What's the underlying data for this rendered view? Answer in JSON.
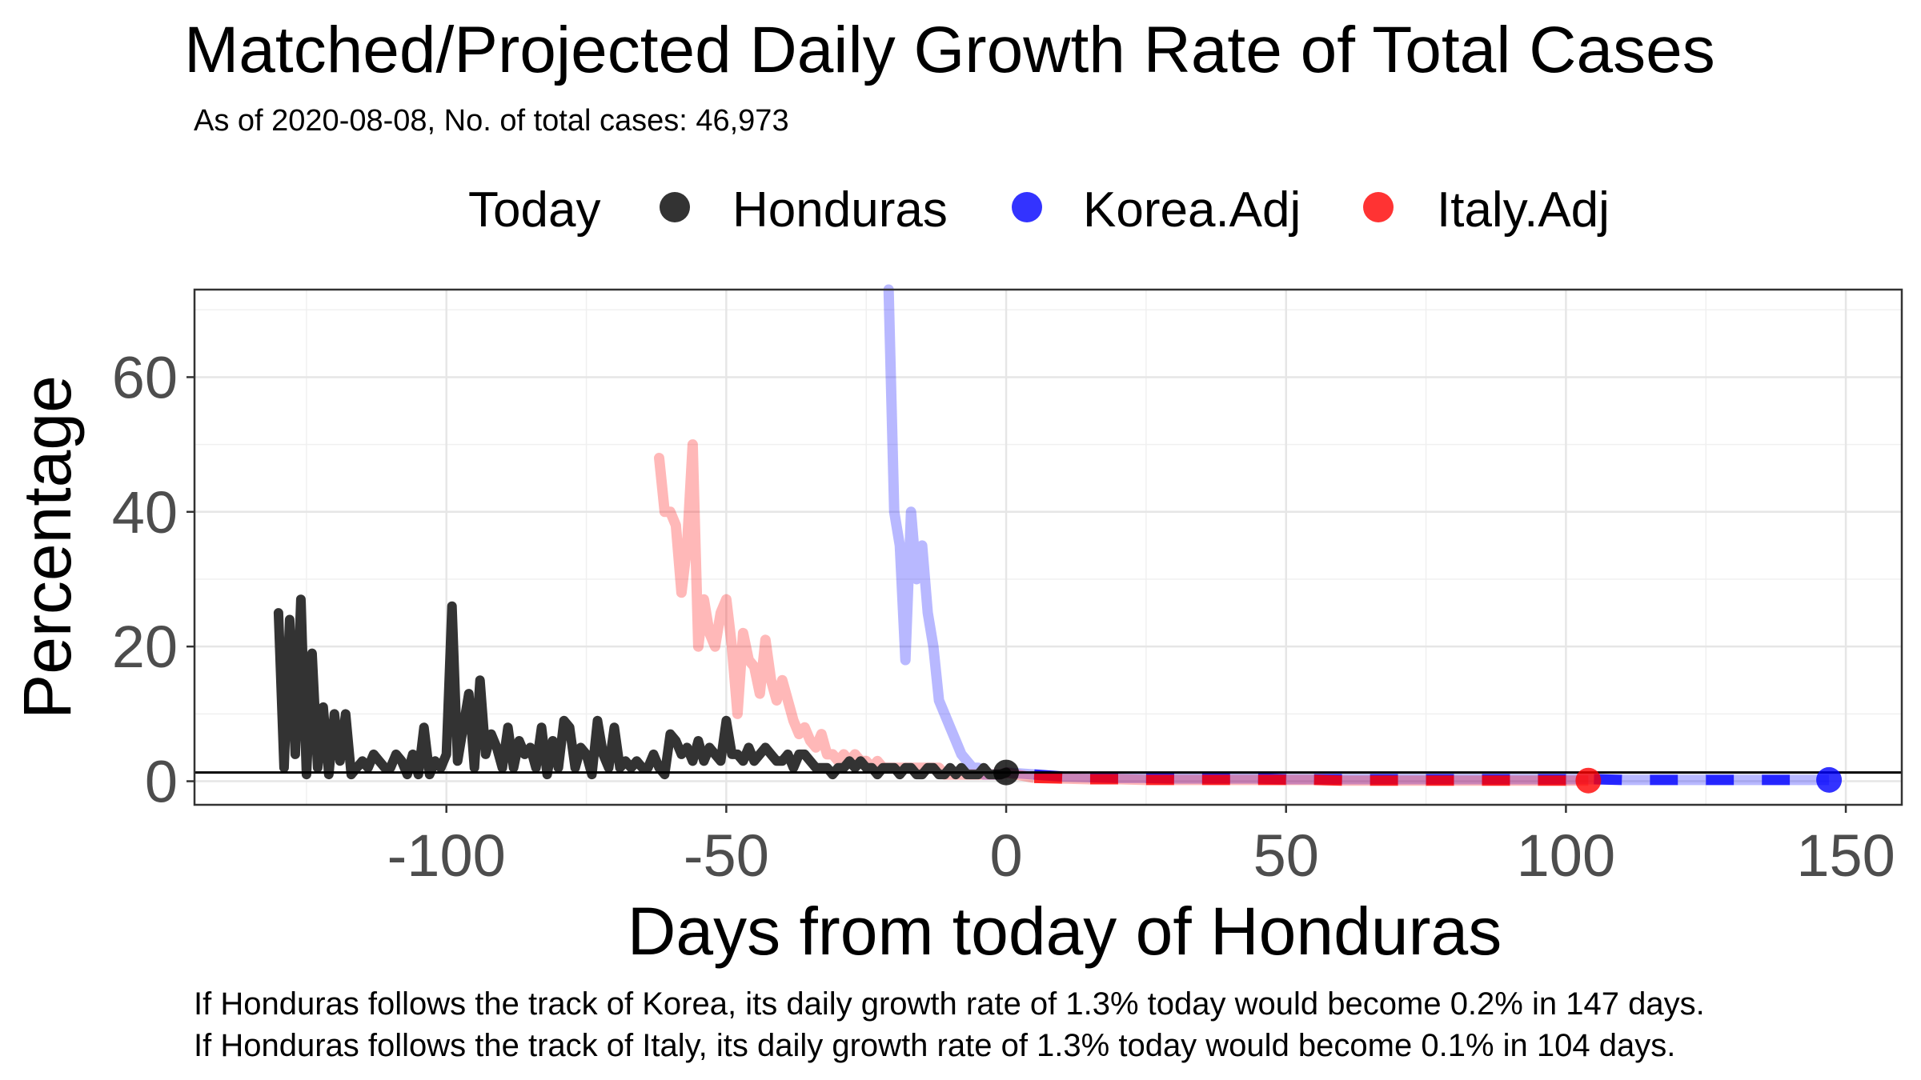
{
  "chart_data": {
    "type": "line",
    "title": "Matched/Projected Daily Growth Rate of Total Cases",
    "subtitle": "As of 2020-08-08, No. of total cases: 46,973",
    "xlabel": "Days from today of Honduras",
    "ylabel": "Percentage",
    "xlim": [
      -145,
      160
    ],
    "ylim": [
      -3.5,
      73
    ],
    "x_ticks": [
      -100,
      -50,
      0,
      50,
      100,
      150
    ],
    "x_tick_labels": [
      "-100",
      "-50",
      "0",
      "50",
      "100",
      "150"
    ],
    "y_ticks": [
      0,
      20,
      40,
      60
    ],
    "y_tick_labels": [
      "0",
      "20",
      "40",
      "60"
    ],
    "grid": true,
    "legend": {
      "position": "top",
      "title": "Today",
      "entries": [
        {
          "label": "Honduras",
          "color": "#000000"
        },
        {
          "label": "Korea.Adj",
          "color": "#0000ff"
        },
        {
          "label": "Italy.Adj",
          "color": "#ff0000"
        }
      ]
    },
    "today_line_y": 1.3,
    "series": [
      {
        "name": "Honduras",
        "color": "#333333",
        "x": [
          -130,
          -129,
          -128,
          -127,
          -126,
          -125,
          -124,
          -123,
          -122,
          -121,
          -120,
          -119,
          -118,
          -117,
          -116,
          -115,
          -114,
          -113,
          -112,
          -111,
          -110,
          -109,
          -108,
          -107,
          -106,
          -105,
          -104,
          -103,
          -102,
          -101,
          -100,
          -99,
          -98,
          -97,
          -96,
          -95,
          -94,
          -93,
          -92,
          -91,
          -90,
          -89,
          -88,
          -87,
          -86,
          -85,
          -84,
          -83,
          -82,
          -81,
          -80,
          -79,
          -78,
          -77,
          -76,
          -75,
          -74,
          -73,
          -72,
          -71,
          -70,
          -69,
          -68,
          -67,
          -66,
          -65,
          -64,
          -63,
          -62,
          -61,
          -60,
          -59,
          -58,
          -57,
          -56,
          -55,
          -54,
          -53,
          -52,
          -51,
          -50,
          -49,
          -48,
          -47,
          -46,
          -45,
          -44,
          -43,
          -42,
          -41,
          -40,
          -39,
          -38,
          -37,
          -36,
          -35,
          -34,
          -33,
          -32,
          -31,
          -30,
          -29,
          -28,
          -27,
          -26,
          -25,
          -24,
          -23,
          -22,
          -21,
          -20,
          -19,
          -18,
          -17,
          -16,
          -15,
          -14,
          -13,
          -12,
          -11,
          -10,
          -9,
          -8,
          -7,
          -6,
          -5,
          -4,
          -3,
          -2,
          -1,
          0
        ],
        "values": [
          25,
          2,
          24,
          4,
          27,
          1,
          19,
          2,
          11,
          1,
          10,
          3,
          10,
          1,
          2,
          3,
          2,
          4,
          3,
          2,
          2,
          4,
          3,
          1,
          4,
          1,
          8,
          1,
          3,
          2,
          4,
          26,
          3,
          8,
          13,
          2,
          15,
          4,
          7,
          5,
          2,
          8,
          2,
          6,
          4,
          5,
          2,
          8,
          1,
          6,
          2,
          9,
          8,
          2,
          5,
          4,
          1,
          9,
          4,
          2,
          8,
          2,
          3,
          2,
          3,
          2,
          2,
          4,
          2,
          1,
          7,
          6,
          4,
          5,
          3,
          6,
          3,
          5,
          4,
          3,
          9,
          4,
          4,
          3,
          5,
          3,
          4,
          5,
          4,
          3,
          3,
          4,
          2,
          4,
          4,
          3,
          2,
          2,
          2,
          1,
          2,
          2,
          3,
          2,
          3,
          2,
          2,
          1,
          2,
          2,
          2,
          1,
          2,
          2,
          1,
          1,
          2,
          2,
          1,
          1,
          2,
          1,
          2,
          1,
          1,
          1,
          2,
          1,
          1,
          1,
          1.3
        ]
      },
      {
        "name": "Korea.Adj",
        "color": "#0000ff",
        "x": [
          -21,
          -20,
          -19,
          -18,
          -17,
          -16,
          -15,
          -14,
          -13,
          -12,
          -11,
          -10,
          -9,
          -8,
          -7,
          -6,
          -5,
          -4,
          -3,
          -2,
          -1,
          0,
          5,
          10,
          15,
          20,
          25,
          30,
          35,
          40,
          45,
          50,
          55,
          60,
          65,
          70,
          75,
          80,
          85,
          90,
          95,
          100,
          105,
          110,
          115,
          120,
          125,
          130,
          135,
          140,
          147
        ],
        "values": [
          73,
          40,
          35,
          18,
          40,
          30,
          35,
          25,
          20,
          12,
          10,
          8,
          6,
          4,
          3,
          2,
          2,
          1,
          1,
          1,
          1,
          1.3,
          1,
          0.7,
          0.6,
          0.5,
          0.5,
          0.4,
          0.4,
          0.4,
          0.4,
          0.3,
          0.3,
          0.3,
          0.3,
          0.3,
          0.3,
          0.3,
          0.3,
          0.3,
          0.3,
          0.3,
          0.3,
          0.2,
          0.2,
          0.2,
          0.2,
          0.2,
          0.2,
          0.2,
          0.2
        ]
      },
      {
        "name": "Italy.Adj",
        "color": "#ff0000",
        "x": [
          -62,
          -61,
          -60,
          -59,
          -58,
          -57,
          -56,
          -55,
          -54,
          -53,
          -52,
          -51,
          -50,
          -49,
          -48,
          -47,
          -46,
          -45,
          -44,
          -43,
          -42,
          -41,
          -40,
          -39,
          -38,
          -37,
          -36,
          -35,
          -34,
          -33,
          -32,
          -31,
          -30,
          -29,
          -28,
          -27,
          -26,
          -25,
          -24,
          -23,
          -22,
          -21,
          -20,
          -19,
          -18,
          -17,
          -16,
          -15,
          -14,
          -13,
          -12,
          -11,
          -10,
          -9,
          -8,
          -7,
          -6,
          -5,
          -4,
          -3,
          -2,
          -1,
          0,
          5,
          10,
          15,
          20,
          25,
          30,
          35,
          40,
          45,
          50,
          55,
          60,
          65,
          70,
          75,
          80,
          85,
          90,
          95,
          100,
          104
        ],
        "values": [
          48,
          40,
          40,
          38,
          28,
          35,
          50,
          20,
          27,
          22,
          20,
          25,
          27,
          20,
          10,
          22,
          18,
          17,
          13,
          21,
          15,
          12,
          15,
          12,
          9,
          7,
          8,
          6,
          5,
          7,
          4,
          4,
          3,
          4,
          3,
          4,
          3,
          3,
          2,
          3,
          2,
          2,
          2,
          2,
          2,
          2,
          2,
          2,
          2,
          2,
          2,
          1,
          1,
          1,
          1,
          1,
          1,
          1,
          1,
          1,
          1,
          1,
          1.3,
          0.5,
          0.4,
          0.3,
          0.3,
          0.2,
          0.2,
          0.2,
          0.2,
          0.2,
          0.2,
          0.2,
          0.1,
          0.1,
          0.1,
          0.1,
          0.1,
          0.1,
          0.1,
          0.1,
          0.1,
          0.1
        ]
      }
    ],
    "today_points": [
      {
        "series": "Honduras",
        "x": 0,
        "y": 1.3,
        "color": "#000000"
      },
      {
        "series": "Korea.Adj",
        "x": 147,
        "y": 0.2,
        "color": "#0000ff"
      },
      {
        "series": "Italy.Adj",
        "x": 104,
        "y": 0.1,
        "color": "#ff0000"
      }
    ],
    "captions": [
      "If Honduras follows the track of Korea, its daily growth rate of 1.3% today would become 0.2% in 147 days.",
      "If Honduras follows the track of Italy, its daily growth rate of 1.3% today would become 0.1% in 104 days."
    ]
  }
}
